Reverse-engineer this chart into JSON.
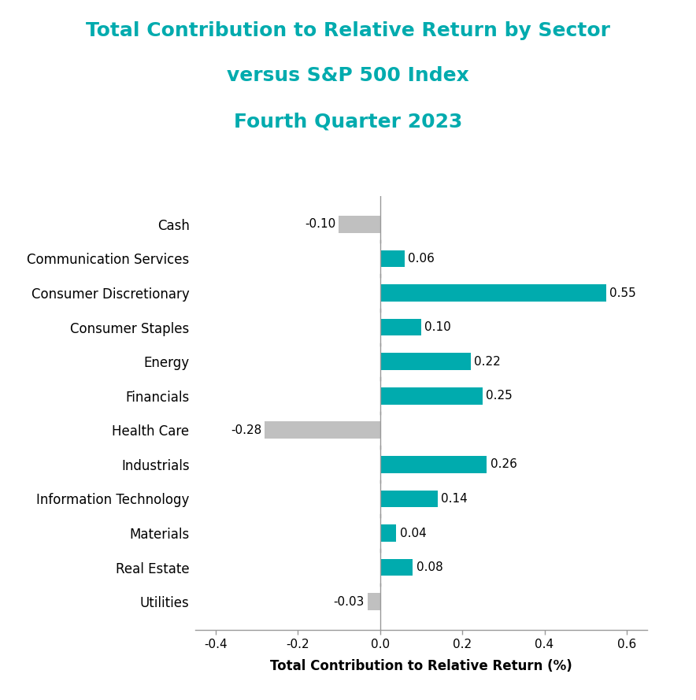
{
  "title_line1": "Total Contribution to Relative Return by Sector",
  "title_line2": "versus S&P 500 Index",
  "subtitle": "Fourth Quarter 2023",
  "xlabel": "Total Contribution to Relative Return (%)",
  "categories": [
    "Cash",
    "Communication Services",
    "Consumer Discretionary",
    "Consumer Staples",
    "Energy",
    "Financials",
    "Health Care",
    "Industrials",
    "Information Technology",
    "Materials",
    "Real Estate",
    "Utilities"
  ],
  "values": [
    -0.1,
    0.06,
    0.55,
    0.1,
    0.22,
    0.25,
    -0.28,
    0.26,
    0.14,
    0.04,
    0.08,
    -0.03
  ],
  "positive_color": "#00ABAE",
  "negative_color": "#C0C0C0",
  "title_color": "#00ABAE",
  "axis_label_color": "#1a1a2e",
  "xlim": [
    -0.45,
    0.65
  ],
  "xticks": [
    -0.4,
    -0.2,
    0.0,
    0.2,
    0.4,
    0.6
  ],
  "bar_height": 0.5,
  "background_color": "#FFFFFF",
  "title_fontsize": 18,
  "subtitle_fontsize": 18,
  "ylabel_fontsize": 12,
  "tick_fontsize": 11,
  "value_fontsize": 11,
  "xlabel_fontsize": 12
}
